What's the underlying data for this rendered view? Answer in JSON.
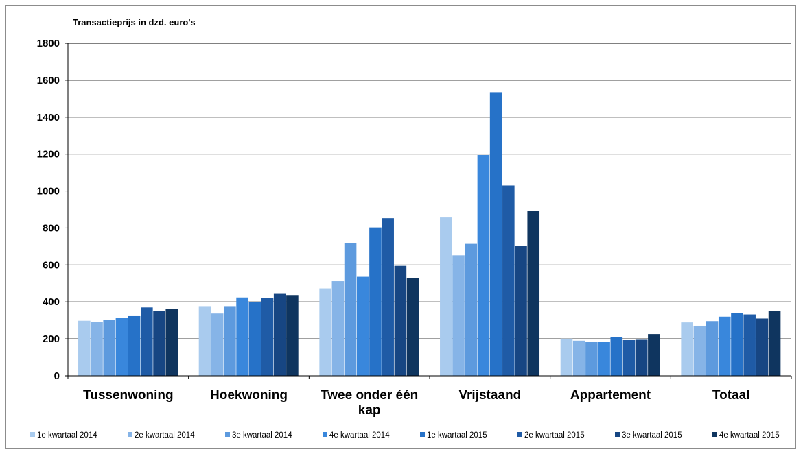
{
  "chart_data": {
    "type": "bar",
    "title": "Transactieprijs in dzd. euro's",
    "xlabel": "",
    "ylabel": "",
    "ylim": [
      0,
      1800
    ],
    "yticks": [
      0,
      200,
      400,
      600,
      800,
      1000,
      1200,
      1400,
      1600,
      1800
    ],
    "grid": true,
    "legend_position": "bottom",
    "categories": [
      "Tussenwoning",
      "Hoekwoning",
      "Twee onder één kap",
      "Vrijstaand",
      "Appartement",
      "Totaal"
    ],
    "series": [
      {
        "name": "1e kwartaal 2014",
        "color": "#a9cbee",
        "values": [
          298,
          377,
          473,
          857,
          201,
          289
        ]
      },
      {
        "name": "2e kwartaal 2014",
        "color": "#86b4e7",
        "values": [
          290,
          337,
          512,
          652,
          190,
          271
        ]
      },
      {
        "name": "3e kwartaal 2014",
        "color": "#5d9ade",
        "values": [
          302,
          377,
          718,
          714,
          182,
          296
        ]
      },
      {
        "name": "4e kwartaal 2014",
        "color": "#3987dc",
        "values": [
          312,
          424,
          536,
          1195,
          183,
          320
        ]
      },
      {
        "name": "1e kwartaal 2015",
        "color": "#2672c8",
        "values": [
          323,
          400,
          803,
          1535,
          211,
          340
        ]
      },
      {
        "name": "2e kwartaal 2015",
        "color": "#1f5ba6",
        "values": [
          370,
          421,
          853,
          1030,
          193,
          332
        ]
      },
      {
        "name": "3e kwartaal 2015",
        "color": "#174683",
        "values": [
          352,
          447,
          595,
          702,
          195,
          310
        ]
      },
      {
        "name": "4e kwartaal 2015",
        "color": "#0f355f",
        "values": [
          362,
          437,
          528,
          893,
          226,
          352
        ]
      }
    ]
  }
}
